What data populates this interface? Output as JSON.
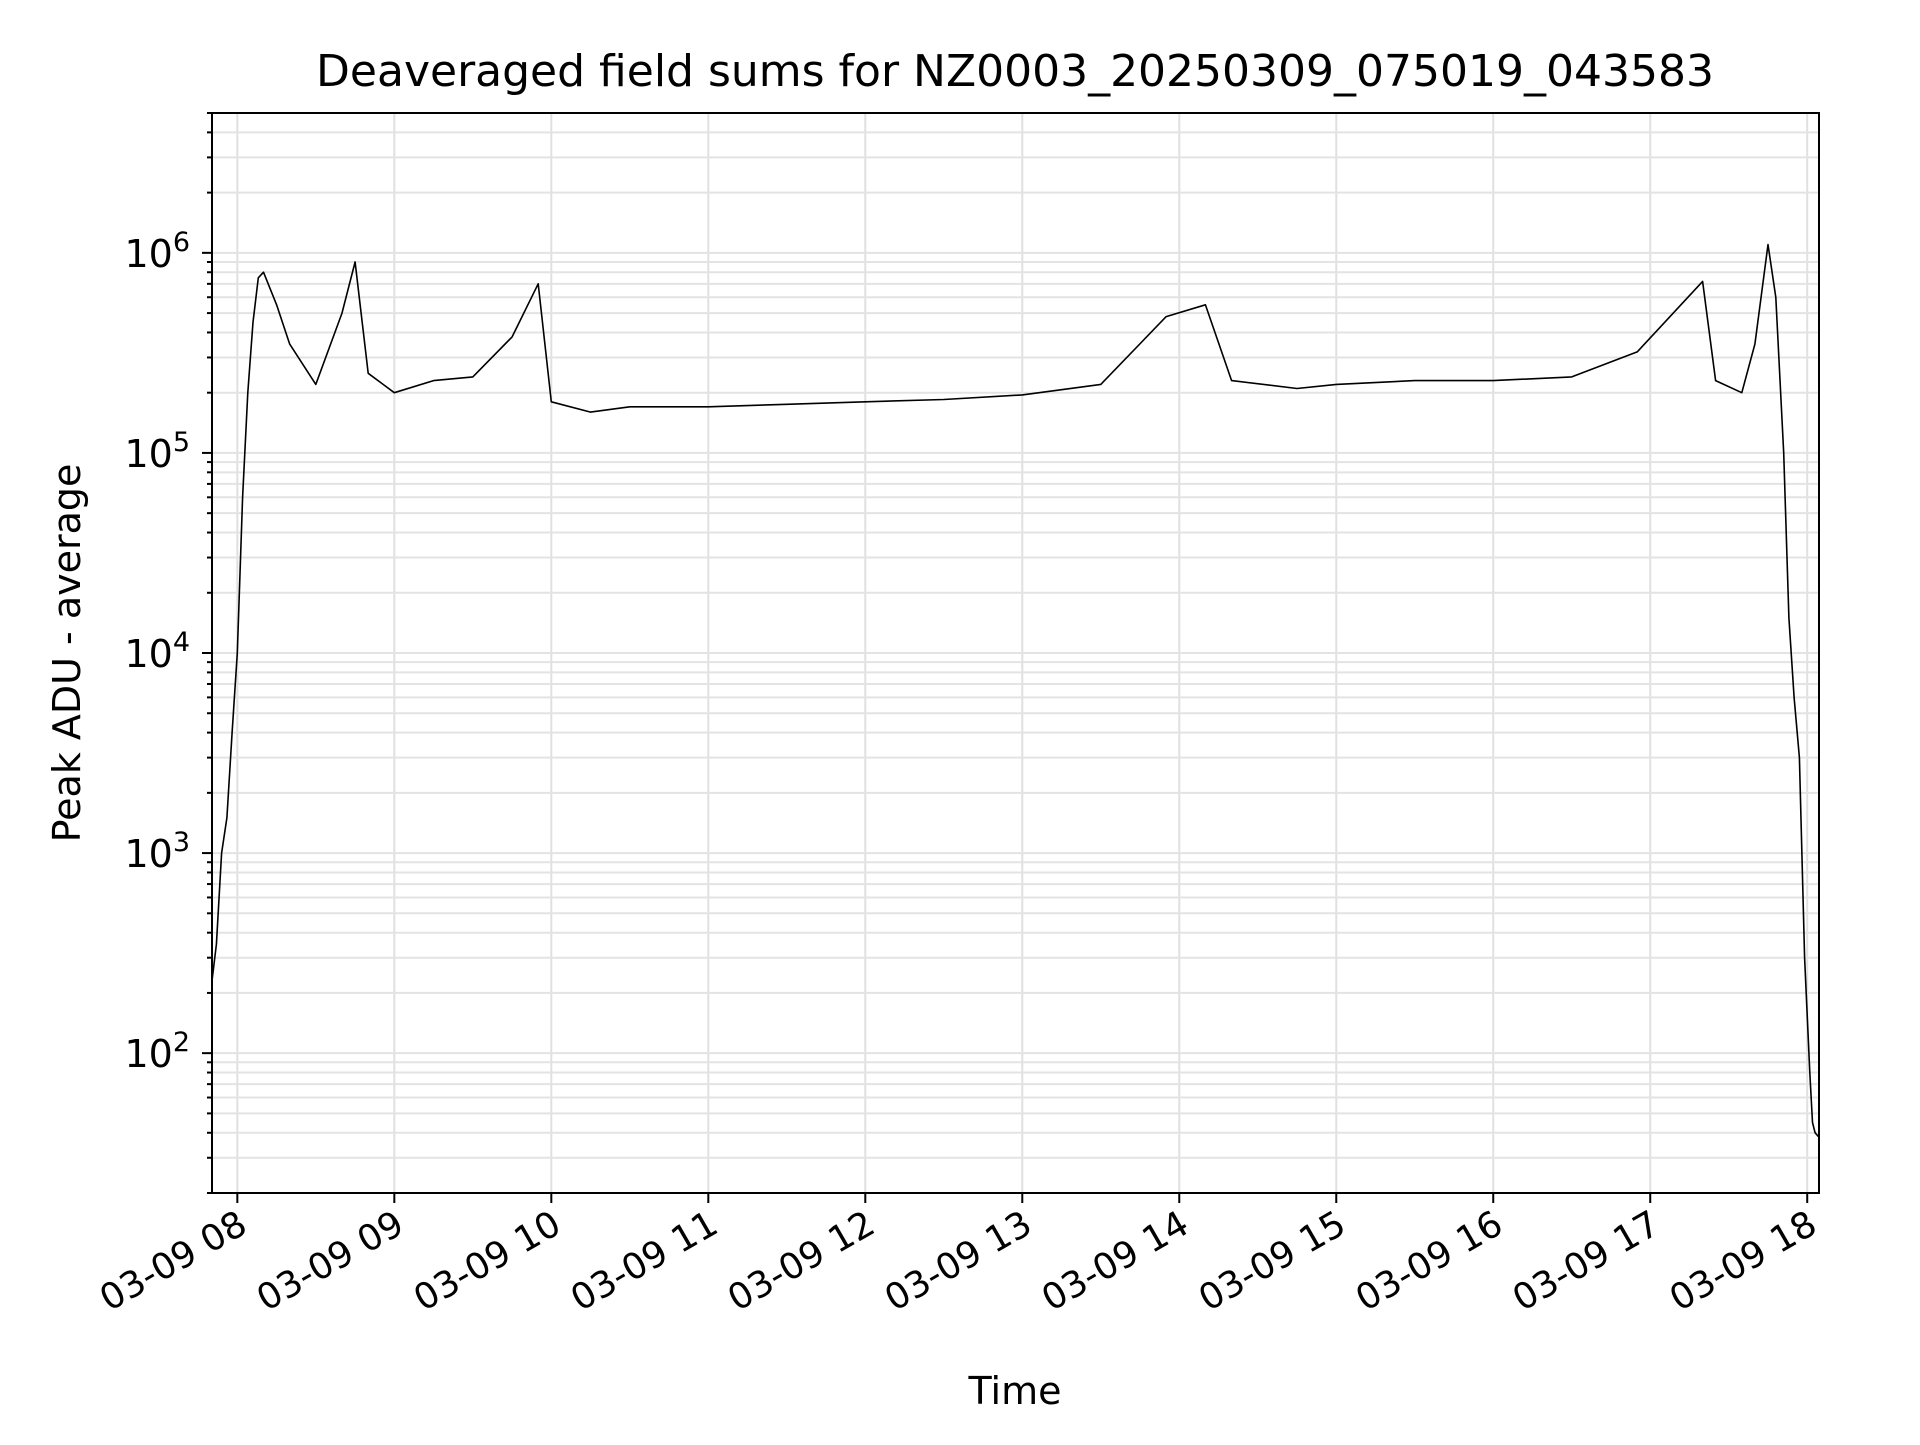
{
  "chart_data": {
    "type": "line",
    "title": "Deaveraged field sums for NZ0003_20250309_075019_043583",
    "xlabel": "Time",
    "ylabel": "Peak ADU - average",
    "yscale": "log",
    "ylim": [
      20,
      5000000
    ],
    "xlim": [
      "2025-03-09T07:50:19",
      "2025-03-09T18:04:30"
    ],
    "grid": "major and minor, light gray",
    "x_ticks": [
      {
        "label": "03-09 08",
        "time": "2025-03-09T08:00"
      },
      {
        "label": "03-09 09",
        "time": "2025-03-09T09:00"
      },
      {
        "label": "03-09 10",
        "time": "2025-03-09T10:00"
      },
      {
        "label": "03-09 11",
        "time": "2025-03-09T11:00"
      },
      {
        "label": "03-09 12",
        "time": "2025-03-09T12:00"
      },
      {
        "label": "03-09 13",
        "time": "2025-03-09T13:00"
      },
      {
        "label": "03-09 14",
        "time": "2025-03-09T14:00"
      },
      {
        "label": "03-09 15",
        "time": "2025-03-09T15:00"
      },
      {
        "label": "03-09 16",
        "time": "2025-03-09T16:00"
      },
      {
        "label": "03-09 17",
        "time": "2025-03-09T17:00"
      },
      {
        "label": "03-09 18",
        "time": "2025-03-09T18:00"
      }
    ],
    "y_ticks": [
      {
        "base": "10",
        "exp": "2",
        "value": 100
      },
      {
        "base": "10",
        "exp": "3",
        "value": 1000
      },
      {
        "base": "10",
        "exp": "4",
        "value": 10000
      },
      {
        "base": "10",
        "exp": "5",
        "value": 100000
      },
      {
        "base": "10",
        "exp": "6",
        "value": 1000000
      }
    ],
    "series": [
      {
        "color": "#000000",
        "x": [
          "2025-03-09T07:50:19",
          "2025-03-09T07:52",
          "2025-03-09T07:54",
          "2025-03-09T07:56",
          "2025-03-09T07:58",
          "2025-03-09T08:00",
          "2025-03-09T08:02",
          "2025-03-09T08:04",
          "2025-03-09T08:06",
          "2025-03-09T08:08",
          "2025-03-09T08:10",
          "2025-03-09T08:15",
          "2025-03-09T08:20",
          "2025-03-09T08:30",
          "2025-03-09T08:40",
          "2025-03-09T08:45",
          "2025-03-09T08:50",
          "2025-03-09T09:00",
          "2025-03-09T09:15",
          "2025-03-09T09:30",
          "2025-03-09T09:45",
          "2025-03-09T09:55",
          "2025-03-09T10:00",
          "2025-03-09T10:15",
          "2025-03-09T10:30",
          "2025-03-09T11:00",
          "2025-03-09T11:30",
          "2025-03-09T12:00",
          "2025-03-09T12:30",
          "2025-03-09T13:00",
          "2025-03-09T13:30",
          "2025-03-09T13:55",
          "2025-03-09T14:10",
          "2025-03-09T14:20",
          "2025-03-09T14:45",
          "2025-03-09T15:00",
          "2025-03-09T15:30",
          "2025-03-09T16:00",
          "2025-03-09T16:30",
          "2025-03-09T16:55",
          "2025-03-09T17:10",
          "2025-03-09T17:20",
          "2025-03-09T17:25",
          "2025-03-09T17:35",
          "2025-03-09T17:40",
          "2025-03-09T17:45",
          "2025-03-09T17:48",
          "2025-03-09T17:51",
          "2025-03-09T17:53",
          "2025-03-09T17:55",
          "2025-03-09T17:57",
          "2025-03-09T17:59",
          "2025-03-09T18:01",
          "2025-03-09T18:02",
          "2025-03-09T18:03",
          "2025-03-09T18:04:30"
        ],
        "y": [
          230,
          350,
          1000,
          1500,
          4000,
          10000,
          60000,
          200000,
          450000,
          750000,
          800000,
          550000,
          350000,
          220000,
          500000,
          900000,
          250000,
          200000,
          230000,
          240000,
          380000,
          700000,
          180000,
          160000,
          170000,
          170000,
          175000,
          180000,
          185000,
          195000,
          220000,
          480000,
          550000,
          230000,
          210000,
          220000,
          230000,
          230000,
          240000,
          320000,
          520000,
          720000,
          230000,
          200000,
          350000,
          1100000,
          600000,
          100000,
          15000,
          6000,
          3000,
          300,
          80,
          45,
          40,
          38
        ]
      }
    ]
  }
}
